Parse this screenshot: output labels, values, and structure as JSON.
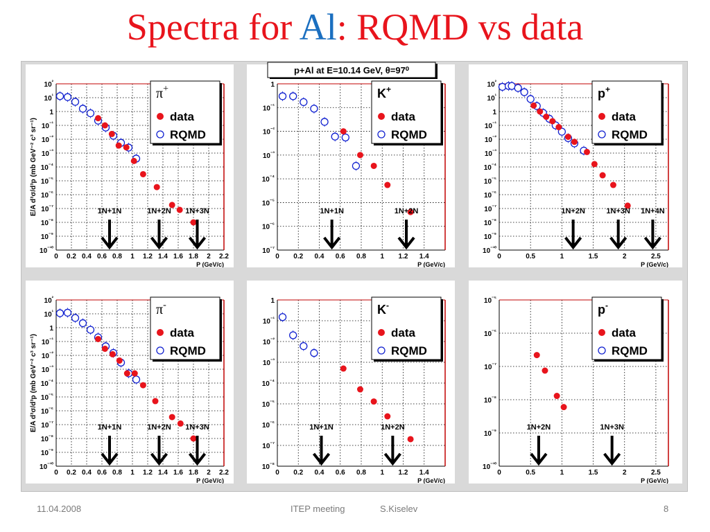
{
  "title": {
    "part1": "Spectra for ",
    "part2": "Al",
    "part3": ": RQMD vs data"
  },
  "figure_title": "p+Al at E=10.14 GeV, θ=97⁰",
  "footer": {
    "date": "11.04.2008",
    "meeting": "ITEP meeting",
    "author": "S.Kiselev",
    "page": "8"
  },
  "colors": {
    "title": "#e8141c",
    "al": "#1b6fc0",
    "data": "#e8141c",
    "rqmd": "#1020d0",
    "frame": "#c00000",
    "grid": "#000000",
    "arrow": "#000000"
  },
  "icons": {
    "data_marker": "filled-red-circle-icon",
    "rqmd_marker": "open-blue-circle-icon",
    "threshold": "down-arrow-icon"
  },
  "chart_data": [
    {
      "type": "scatter",
      "particle": "π",
      "charge": "+",
      "xlabel": "P (GeV/c)",
      "ylabel": "E/A d³σ/d³p (mb GeV⁻² c³ sr⁻¹)",
      "xlim": [
        0,
        2.2
      ],
      "ylog": true,
      "ylim": [
        -10,
        2
      ],
      "xticks": [
        0,
        0.2,
        0.4,
        0.6,
        0.8,
        1,
        1.2,
        1.4,
        1.6,
        1.8,
        2,
        2.2
      ],
      "xtick_labels": [
        "0",
        "0.2",
        "0.4",
        "0.6",
        "0.8",
        "1",
        "1.2",
        "1.4",
        "1.6",
        "1.8",
        "2",
        "2.2"
      ],
      "legend": [
        "π⁺",
        "data",
        "RQMD"
      ],
      "series": [
        {
          "name": "data",
          "x": [
            0.55,
            0.64,
            0.73,
            0.82,
            0.92,
            1.02,
            1.14,
            1.32,
            1.52,
            1.62,
            1.8
          ],
          "y": [
            0.33,
            0.1,
            0.024,
            0.0035,
            0.0026,
            0.00027,
            3e-05,
            3.5e-06,
            1.8e-07,
            8e-08,
            1e-08
          ]
        },
        {
          "name": "RQMD",
          "x": [
            0.05,
            0.15,
            0.25,
            0.35,
            0.45,
            0.55,
            0.65,
            0.75,
            0.85,
            0.95,
            1.05
          ],
          "y": [
            13,
            11,
            5,
            1.6,
            0.75,
            0.22,
            0.07,
            0.018,
            0.0055,
            0.0025,
            0.0004
          ]
        }
      ],
      "thresholds": [
        {
          "label": "1N+1N",
          "x": 0.7
        },
        {
          "label": "1N+2N",
          "x": 1.35
        },
        {
          "label": "1N+3N",
          "x": 1.85
        }
      ]
    },
    {
      "type": "scatter",
      "particle": "K",
      "charge": "+",
      "xlabel": "P (GeV/c)",
      "ylabel": "",
      "xlim": [
        0,
        1.6
      ],
      "ylog": true,
      "ylim": [
        -7,
        0
      ],
      "xticks": [
        0,
        0.2,
        0.4,
        0.6,
        0.8,
        1,
        1.2,
        1.4
      ],
      "xtick_labels": [
        "0",
        "0.2",
        "0.4",
        "0.6",
        "0.8",
        "1",
        "1.2",
        "1.4"
      ],
      "legend": [
        "K⁺",
        "data",
        "RQMD"
      ],
      "series": [
        {
          "name": "data",
          "x": [
            0.63,
            0.79,
            0.92,
            1.05,
            1.27
          ],
          "y": [
            0.01,
            0.001,
            0.00035,
            5.5e-05,
            4e-06
          ]
        },
        {
          "name": "RQMD",
          "x": [
            0.05,
            0.15,
            0.25,
            0.35,
            0.45,
            0.55,
            0.65,
            0.75
          ],
          "y": [
            0.3,
            0.3,
            0.17,
            0.09,
            0.025,
            0.006,
            0.0055,
            0.00035
          ]
        }
      ],
      "thresholds": [
        {
          "label": "1N+1N",
          "x": 0.52
        },
        {
          "label": "1N+2N",
          "x": 1.23
        }
      ]
    },
    {
      "type": "scatter",
      "particle": "p",
      "charge": "+",
      "xlabel": "P (GeV/c)",
      "ylabel": "",
      "xlim": [
        0,
        2.7
      ],
      "ylog": true,
      "ylim": [
        -10,
        2
      ],
      "xticks": [
        0,
        0.5,
        1,
        1.5,
        2,
        2.5
      ],
      "xtick_labels": [
        "0",
        "0.5",
        "1",
        "1.5",
        "2",
        "2.5"
      ],
      "legend": [
        "p⁺",
        "data",
        "RQMD"
      ],
      "series": [
        {
          "name": "data",
          "x": [
            0.55,
            0.65,
            0.75,
            0.85,
            0.95,
            1.1,
            1.2,
            1.4,
            1.52,
            1.65,
            1.82,
            2.05
          ],
          "y": [
            2.7,
            1.0,
            0.42,
            0.2,
            0.075,
            0.015,
            0.0065,
            0.0012,
            0.00016,
            2.5e-05,
            5e-06,
            1.6e-07
          ]
        },
        {
          "name": "RQMD",
          "x": [
            0.05,
            0.15,
            0.2,
            0.3,
            0.4,
            0.5,
            0.6,
            0.7,
            0.8,
            0.9,
            1.0,
            1.1,
            1.2,
            1.35
          ],
          "y": [
            60,
            70,
            70,
            50,
            25,
            8,
            2.5,
            0.8,
            0.3,
            0.1,
            0.035,
            0.012,
            0.005,
            0.0015
          ]
        }
      ],
      "thresholds": [
        {
          "label": "1N+2N",
          "x": 1.18
        },
        {
          "label": "1N+3N",
          "x": 1.9
        },
        {
          "label": "1N+4N",
          "x": 2.45
        }
      ]
    },
    {
      "type": "scatter",
      "particle": "π",
      "charge": "-",
      "xlabel": "P (GeV/c)",
      "ylabel": "E/A d³σ/d³p (mb GeV⁻² c³ sr⁻¹)",
      "xlim": [
        0,
        2.2
      ],
      "ylog": true,
      "ylim": [
        -10,
        2
      ],
      "xticks": [
        0,
        0.2,
        0.4,
        0.6,
        0.8,
        1,
        1.2,
        1.4,
        1.6,
        1.8,
        2,
        2.2
      ],
      "xtick_labels": [
        "0",
        "0.2",
        "0.4",
        "0.6",
        "0.8",
        "1",
        "1.2",
        "1.4",
        "1.6",
        "1.8",
        "2",
        "2.2"
      ],
      "legend": [
        "π⁻",
        "data",
        "RQMD"
      ],
      "series": [
        {
          "name": "data",
          "x": [
            0.55,
            0.64,
            0.74,
            0.83,
            0.93,
            1.03,
            1.14,
            1.3,
            1.52,
            1.63,
            1.8
          ],
          "y": [
            0.15,
            0.03,
            0.012,
            0.0042,
            0.0005,
            0.0005,
            7e-05,
            5e-06,
            3.5e-07,
            1.2e-07,
            1e-08
          ]
        },
        {
          "name": "RQMD",
          "x": [
            0.05,
            0.15,
            0.25,
            0.35,
            0.45,
            0.55,
            0.65,
            0.75,
            0.85,
            0.95,
            1.05
          ],
          "y": [
            11,
            12,
            5,
            2.1,
            0.7,
            0.2,
            0.045,
            0.015,
            0.003,
            0.0005,
            0.00018
          ]
        }
      ],
      "thresholds": [
        {
          "label": "1N+1N",
          "x": 0.7
        },
        {
          "label": "1N+2N",
          "x": 1.35
        },
        {
          "label": "1N+3N",
          "x": 1.85
        }
      ]
    },
    {
      "type": "scatter",
      "particle": "K",
      "charge": "-",
      "xlabel": "P (GeV/c)",
      "ylabel": "",
      "xlim": [
        0,
        1.6
      ],
      "ylog": true,
      "ylim": [
        -8,
        0
      ],
      "xticks": [
        0,
        0.2,
        0.4,
        0.6,
        0.8,
        1,
        1.2,
        1.4
      ],
      "xtick_labels": [
        "0",
        "0.2",
        "0.4",
        "0.6",
        "0.8",
        "1",
        "1.2",
        "1.4"
      ],
      "legend": [
        "K⁻",
        "data",
        "RQMD"
      ],
      "series": [
        {
          "name": "data",
          "x": [
            0.63,
            0.79,
            0.92,
            1.05,
            1.27
          ],
          "y": [
            0.0005,
            5e-05,
            1.3e-05,
            2.5e-06,
            2e-07
          ]
        },
        {
          "name": "RQMD",
          "x": [
            0.05,
            0.15,
            0.25,
            0.35
          ],
          "y": [
            0.15,
            0.02,
            0.006,
            0.0028
          ]
        }
      ],
      "thresholds": [
        {
          "label": "1N+1N",
          "x": 0.42
        },
        {
          "label": "1N+2N",
          "x": 1.1
        }
      ]
    },
    {
      "type": "scatter",
      "particle": "p",
      "charge": "-",
      "xlabel": "P (GeV/c)",
      "ylabel": "",
      "xlim": [
        0,
        2.7
      ],
      "ylog": true,
      "ylim": [
        -10,
        -5
      ],
      "xticks": [
        0,
        0.5,
        1,
        1.5,
        2,
        2.5
      ],
      "xtick_labels": [
        "0",
        "0.5",
        "1",
        "1.5",
        "2",
        "2.5"
      ],
      "legend": [
        "p⁻",
        "data",
        "RQMD"
      ],
      "series": [
        {
          "name": "data",
          "x": [
            0.6,
            0.73,
            0.92,
            1.03
          ],
          "y": [
            2.2e-07,
            7.5e-08,
            1.3e-08,
            6e-09
          ]
        },
        {
          "name": "RQMD",
          "x": [],
          "y": []
        }
      ],
      "thresholds": [
        {
          "label": "1N+2N",
          "x": 0.63
        },
        {
          "label": "1N+3N",
          "x": 1.8
        }
      ]
    }
  ]
}
